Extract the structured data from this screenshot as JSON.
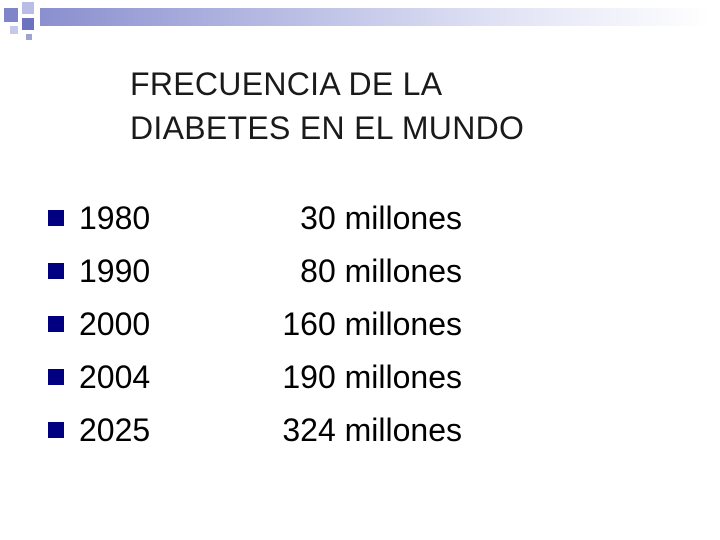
{
  "slide": {
    "title_line1": "FRECUENCIA DE LA",
    "title_line2": "DIABETES  EN EL MUNDO",
    "bullet_color": "#000080",
    "accent_color": "#8a8fcf",
    "rows": [
      {
        "year": "1980",
        "value": "30 millones"
      },
      {
        "year": "1990",
        "value": "80 millones"
      },
      {
        "year": "2000",
        "value": "160 millones"
      },
      {
        "year": "2004",
        "value": "190 millones"
      },
      {
        "year": "2025",
        "value": "324 millones"
      }
    ]
  }
}
